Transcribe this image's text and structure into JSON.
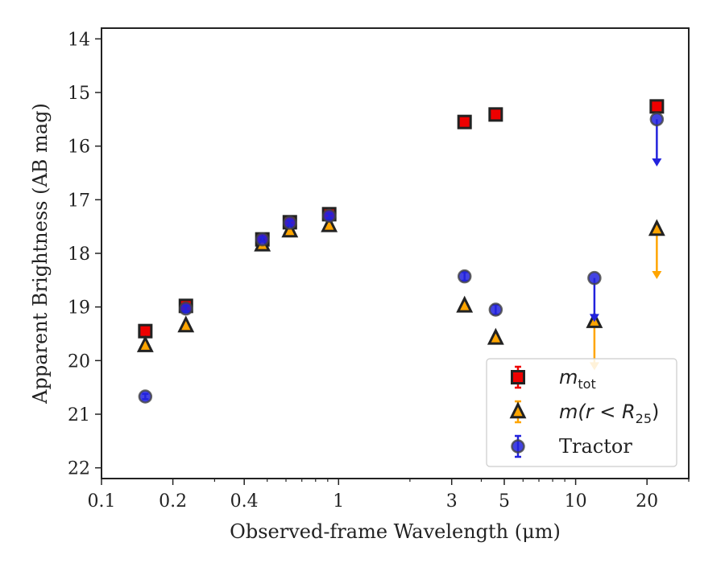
{
  "chart_data": {
    "type": "scatter",
    "xlabel": "Observed-frame Wavelength (μm)",
    "ylabel": "Apparent Brightness (AB mag)",
    "x_scale": "log",
    "y_inverted": true,
    "xlim": [
      0.1,
      30
    ],
    "ylim": [
      22.2,
      13.8
    ],
    "x_ticks": [
      {
        "value": 0.1,
        "label": "0.1"
      },
      {
        "value": 0.2,
        "label": "0.2"
      },
      {
        "value": 0.4,
        "label": "0.4"
      },
      {
        "value": 1,
        "label": "1"
      },
      {
        "value": 3,
        "label": "3"
      },
      {
        "value": 5,
        "label": "5"
      },
      {
        "value": 10,
        "label": "10"
      },
      {
        "value": 20,
        "label": "20"
      }
    ],
    "y_ticks": [
      14,
      15,
      16,
      17,
      18,
      19,
      20,
      21,
      22
    ],
    "grid": false,
    "legend_position": "lower-right",
    "series": [
      {
        "name": "m_tot",
        "legend": {
          "main": "m",
          "sub": "tot"
        },
        "marker": "square",
        "color": "#ee0000",
        "edge": "#222222",
        "points": [
          {
            "x": 0.153,
            "y": 19.45,
            "err": 0.05
          },
          {
            "x": 0.227,
            "y": 18.98,
            "err": 0.06
          },
          {
            "x": 0.477,
            "y": 17.74,
            "err": 0.04
          },
          {
            "x": 0.623,
            "y": 17.42,
            "err": 0.04
          },
          {
            "x": 0.913,
            "y": 17.27,
            "err": 0.05
          },
          {
            "x": 3.4,
            "y": 15.55,
            "err": 0.03
          },
          {
            "x": 4.6,
            "y": 15.41,
            "err": 0.03
          },
          {
            "x": 22.0,
            "y": 15.26,
            "err": 0.05
          }
        ]
      },
      {
        "name": "m(r < R_25)",
        "legend": {
          "main": "m(r < R",
          "sub": "25",
          "tail": ")"
        },
        "marker": "triangle",
        "color": "#ffa500",
        "edge": "#222222",
        "points": [
          {
            "x": 0.153,
            "y": 19.72,
            "err": 0.05
          },
          {
            "x": 0.227,
            "y": 19.35,
            "err": 0.05
          },
          {
            "x": 0.477,
            "y": 17.84,
            "err": 0.04
          },
          {
            "x": 0.623,
            "y": 17.58,
            "err": 0.04
          },
          {
            "x": 0.913,
            "y": 17.48,
            "err": 0.04
          },
          {
            "x": 3.4,
            "y": 18.98,
            "err": 0.04
          },
          {
            "x": 4.6,
            "y": 19.58,
            "err": 0.05
          },
          {
            "x": 12.0,
            "y": 19.27,
            "upper_limit": true,
            "arrow_to": 20.15
          },
          {
            "x": 22.0,
            "y": 17.55,
            "upper_limit": true,
            "arrow_to": 18.45
          }
        ]
      },
      {
        "name": "Tractor",
        "legend": {
          "main": "Tractor"
        },
        "marker": "circle",
        "color": "#2222dd",
        "edge": "#444444",
        "points": [
          {
            "x": 0.153,
            "y": 20.67,
            "err": 0.05
          },
          {
            "x": 0.227,
            "y": 19.03,
            "err": 0.05
          },
          {
            "x": 0.477,
            "y": 17.74,
            "err": 0.04
          },
          {
            "x": 0.623,
            "y": 17.43,
            "err": 0.04
          },
          {
            "x": 0.913,
            "y": 17.3,
            "err": 0.04
          },
          {
            "x": 3.4,
            "y": 18.43,
            "err": 0.08
          },
          {
            "x": 4.6,
            "y": 19.05,
            "err": 0.09
          },
          {
            "x": 12.0,
            "y": 18.46,
            "upper_limit": true,
            "arrow_to": 19.25
          },
          {
            "x": 22.0,
            "y": 15.5,
            "upper_limit": true,
            "arrow_to": 16.35
          }
        ]
      }
    ]
  }
}
